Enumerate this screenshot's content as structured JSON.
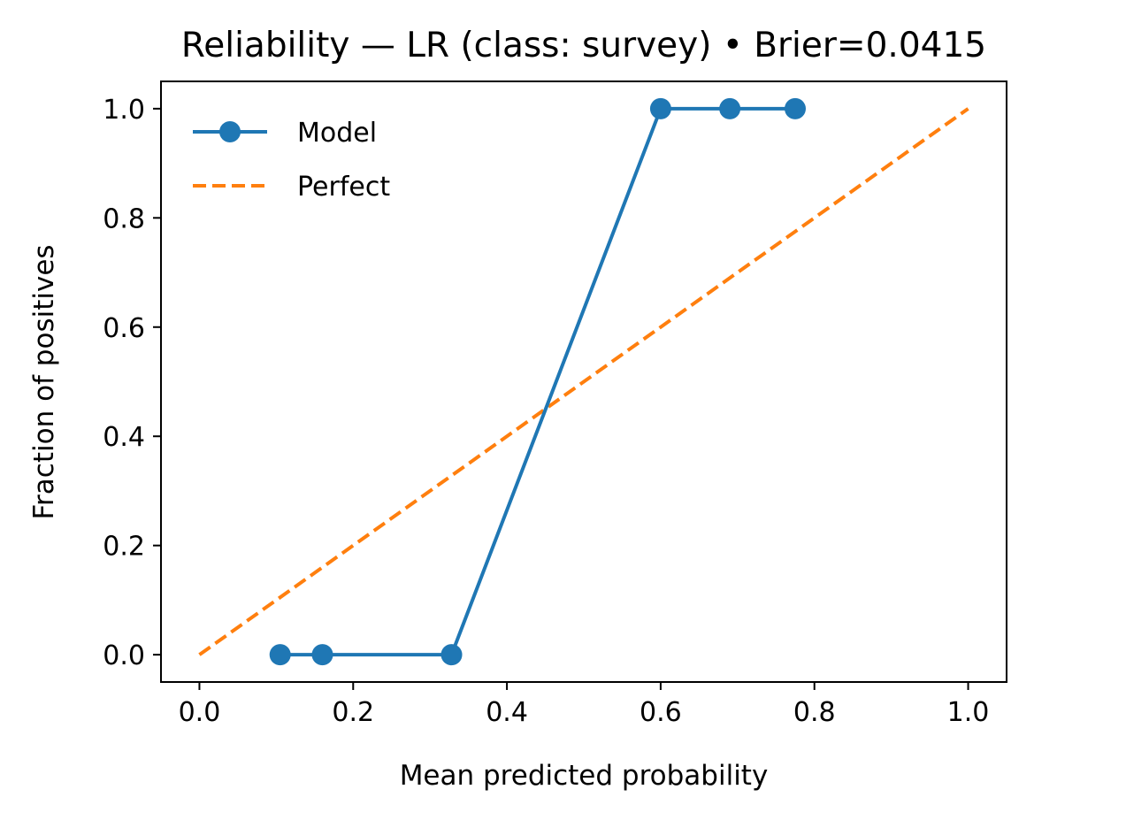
{
  "chart_data": {
    "type": "line",
    "title": "Reliability — LR (class: survey) • Brier=0.0415",
    "xlabel": "Mean predicted probability",
    "ylabel": "Fraction of positives",
    "xlim": [
      -0.05,
      1.05
    ],
    "ylim": [
      -0.05,
      1.05
    ],
    "xticks": [
      "0.0",
      "0.2",
      "0.4",
      "0.6",
      "0.8",
      "1.0"
    ],
    "yticks": [
      "0.0",
      "0.2",
      "0.4",
      "0.6",
      "0.8",
      "1.0"
    ],
    "grid": false,
    "legend_position": "top-left",
    "series": [
      {
        "name": "Model",
        "style": "solid-with-markers",
        "color": "#1f77b4",
        "x": [
          0.105,
          0.16,
          0.328,
          0.6,
          0.69,
          0.775
        ],
        "y": [
          0.0,
          0.0,
          0.0,
          1.0,
          1.0,
          1.0
        ]
      },
      {
        "name": "Perfect",
        "style": "dashed",
        "color": "#ff7f0e",
        "x": [
          0.0,
          1.0
        ],
        "y": [
          0.0,
          1.0
        ]
      }
    ]
  }
}
